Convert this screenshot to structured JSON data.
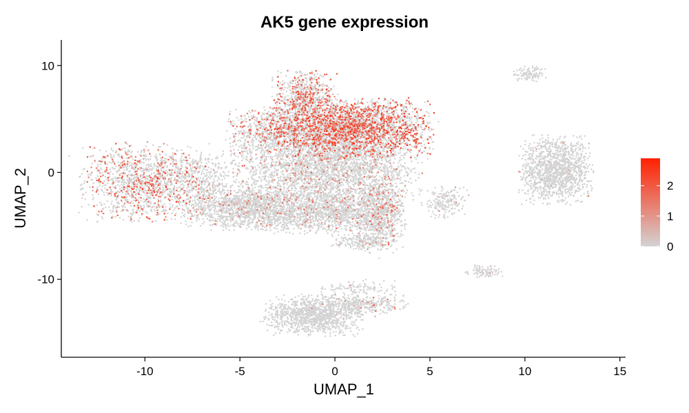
{
  "chart_data": {
    "type": "scatter",
    "title": "AK5 gene expression",
    "xlabel": "UMAP_1",
    "ylabel": "UMAP_2",
    "xlim": [
      -14.4,
      15.3
    ],
    "ylim": [
      -17.3,
      12.4
    ],
    "x_ticks": [
      -10,
      -5,
      0,
      5,
      10,
      15
    ],
    "x_tick_labels": [
      "-10",
      "-5",
      "0",
      "5",
      "10",
      "15"
    ],
    "y_ticks": [
      -10,
      0,
      10
    ],
    "y_tick_labels": [
      "-10",
      "0",
      "10"
    ],
    "grid": false,
    "color_scale": {
      "low_color": "#d3d3d3",
      "high_color": "#ff2000",
      "min": 0,
      "max": 2.9,
      "breaks": [
        0,
        1,
        2
      ],
      "break_labels": [
        "0",
        "1",
        "2"
      ],
      "placement": "right"
    },
    "clusters": [
      {
        "label": "left lobe",
        "cx": -10.0,
        "cy": -0.8,
        "sx": 1.6,
        "sy": 1.7,
        "n": 1400,
        "expr_frac": 0.26,
        "expr_mean": 1.6
      },
      {
        "label": "left bridge",
        "cx": -6.8,
        "cy": -0.5,
        "sx": 0.9,
        "sy": 1.2,
        "n": 300,
        "expr_frac": 0.03,
        "expr_mean": 0.8
      },
      {
        "label": "top arc",
        "cx": -1.6,
        "cy": 7.2,
        "sx": 0.8,
        "sy": 1.1,
        "n": 600,
        "expr_frac": 0.3,
        "expr_mean": 1.7
      },
      {
        "label": "upper left mass",
        "cx": -3.2,
        "cy": 4.0,
        "sx": 1.2,
        "sy": 1.0,
        "n": 700,
        "expr_frac": 0.22,
        "expr_mean": 1.5
      },
      {
        "label": "upper main",
        "cx": 0.8,
        "cy": 4.2,
        "sx": 2.0,
        "sy": 1.3,
        "n": 3200,
        "expr_frac": 0.36,
        "expr_mean": 1.9
      },
      {
        "label": "central body",
        "cx": -0.5,
        "cy": 0.3,
        "sx": 2.3,
        "sy": 1.6,
        "n": 2600,
        "expr_frac": 0.08,
        "expr_mean": 1.1
      },
      {
        "label": "left spread",
        "cx": -4.7,
        "cy": -3.2,
        "sx": 1.6,
        "sy": 1.0,
        "n": 1300,
        "expr_frac": 0.07,
        "expr_mean": 1.0
      },
      {
        "label": "lower middle",
        "cx": -0.3,
        "cy": -3.6,
        "sx": 1.8,
        "sy": 1.0,
        "n": 1400,
        "expr_frac": 0.06,
        "expr_mean": 1.0
      },
      {
        "label": "right arc",
        "cx": 2.4,
        "cy": -4.0,
        "sx": 0.6,
        "sy": 1.6,
        "n": 700,
        "expr_frac": 0.14,
        "expr_mean": 1.4
      },
      {
        "label": "small tail",
        "cx": 1.3,
        "cy": -6.4,
        "sx": 0.7,
        "sy": 0.4,
        "n": 180,
        "expr_frac": 0.06,
        "expr_mean": 1.0
      },
      {
        "label": "bottom blob",
        "cx": -1.2,
        "cy": -13.3,
        "sx": 1.2,
        "sy": 0.9,
        "n": 1100,
        "expr_frac": 0.005,
        "expr_mean": 0.7
      },
      {
        "label": "bottom arm",
        "cx": 1.4,
        "cy": -12.3,
        "sx": 1.1,
        "sy": 0.45,
        "n": 300,
        "expr_frac": 0.05,
        "expr_mean": 1.0
      },
      {
        "label": "bottom streak",
        "cx": 1.2,
        "cy": -10.7,
        "sx": 0.9,
        "sy": 0.35,
        "n": 100,
        "expr_frac": 0.02,
        "expr_mean": 0.8
      },
      {
        "label": "right island",
        "cx": 11.6,
        "cy": 0.3,
        "sx": 0.9,
        "sy": 1.5,
        "n": 1300,
        "expr_frac": 0.008,
        "expr_mean": 0.7
      },
      {
        "label": "upper right speck",
        "cx": 10.2,
        "cy": 9.3,
        "sx": 0.4,
        "sy": 0.35,
        "n": 110,
        "expr_frac": 0.0,
        "expr_mean": 0.5
      },
      {
        "label": "mid-right bits",
        "cx": 5.8,
        "cy": -2.7,
        "sx": 0.55,
        "sy": 0.7,
        "n": 180,
        "expr_frac": 0.06,
        "expr_mean": 1.0
      },
      {
        "label": "right small blob",
        "cx": 7.8,
        "cy": -9.2,
        "sx": 0.45,
        "sy": 0.3,
        "n": 90,
        "expr_frac": 0.02,
        "expr_mean": 0.8
      }
    ]
  }
}
